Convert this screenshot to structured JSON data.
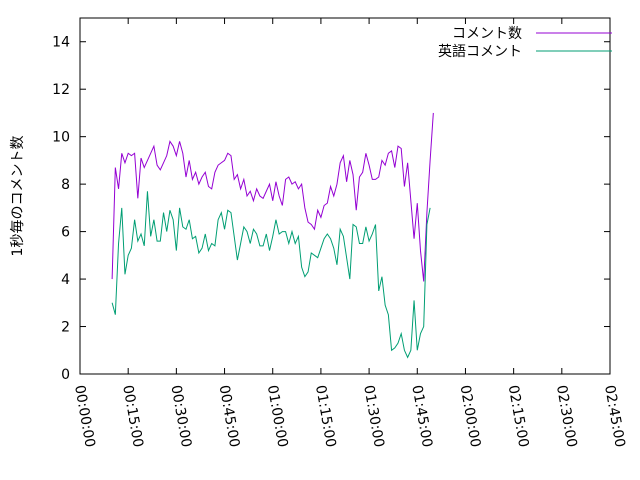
{
  "chart_data": {
    "type": "line",
    "title": "",
    "xlabel": "",
    "ylabel": "1秒毎のコメント数",
    "xlim": [
      0,
      9900
    ],
    "ylim": [
      0,
      15
    ],
    "grid": false,
    "legend_position": "top-right",
    "x_ticks": [
      {
        "v": 0,
        "label": "00:00:00"
      },
      {
        "v": 900,
        "label": "00:15:00"
      },
      {
        "v": 1800,
        "label": "00:30:00"
      },
      {
        "v": 2700,
        "label": "00:45:00"
      },
      {
        "v": 3600,
        "label": "01:00:00"
      },
      {
        "v": 4500,
        "label": "01:15:00"
      },
      {
        "v": 5400,
        "label": "01:30:00"
      },
      {
        "v": 6300,
        "label": "01:45:00"
      },
      {
        "v": 7200,
        "label": "02:00:00"
      },
      {
        "v": 8100,
        "label": "02:15:00"
      },
      {
        "v": 9000,
        "label": "02:30:00"
      },
      {
        "v": 9900,
        "label": "02:45:00"
      }
    ],
    "y_ticks": [
      {
        "v": 0,
        "label": "0"
      },
      {
        "v": 2,
        "label": "2"
      },
      {
        "v": 4,
        "label": "4"
      },
      {
        "v": 6,
        "label": "6"
      },
      {
        "v": 8,
        "label": "8"
      },
      {
        "v": 10,
        "label": "10"
      },
      {
        "v": 12,
        "label": "12"
      },
      {
        "v": 14,
        "label": "14"
      }
    ],
    "series": [
      {
        "name": "コメント数",
        "color": "#9400d3",
        "points": [
          [
            600,
            4.0
          ],
          [
            660,
            8.7
          ],
          [
            720,
            7.8
          ],
          [
            780,
            9.3
          ],
          [
            840,
            8.9
          ],
          [
            900,
            9.3
          ],
          [
            960,
            9.2
          ],
          [
            1020,
            9.3
          ],
          [
            1080,
            7.4
          ],
          [
            1140,
            9.1
          ],
          [
            1200,
            8.7
          ],
          [
            1260,
            9.0
          ],
          [
            1320,
            9.3
          ],
          [
            1380,
            9.6
          ],
          [
            1440,
            8.8
          ],
          [
            1500,
            8.6
          ],
          [
            1560,
            8.9
          ],
          [
            1620,
            9.2
          ],
          [
            1680,
            9.8
          ],
          [
            1740,
            9.6
          ],
          [
            1800,
            9.2
          ],
          [
            1860,
            9.8
          ],
          [
            1920,
            9.3
          ],
          [
            1980,
            8.3
          ],
          [
            2040,
            9.0
          ],
          [
            2100,
            8.2
          ],
          [
            2160,
            8.5
          ],
          [
            2220,
            8.0
          ],
          [
            2280,
            8.3
          ],
          [
            2340,
            8.5
          ],
          [
            2400,
            7.9
          ],
          [
            2460,
            7.8
          ],
          [
            2520,
            8.5
          ],
          [
            2580,
            8.8
          ],
          [
            2640,
            8.9
          ],
          [
            2700,
            9.0
          ],
          [
            2760,
            9.3
          ],
          [
            2820,
            9.2
          ],
          [
            2880,
            8.2
          ],
          [
            2940,
            8.4
          ],
          [
            3000,
            7.8
          ],
          [
            3060,
            8.2
          ],
          [
            3120,
            7.5
          ],
          [
            3180,
            7.7
          ],
          [
            3240,
            7.3
          ],
          [
            3300,
            7.8
          ],
          [
            3360,
            7.5
          ],
          [
            3420,
            7.4
          ],
          [
            3480,
            7.7
          ],
          [
            3540,
            8.0
          ],
          [
            3600,
            7.3
          ],
          [
            3660,
            8.1
          ],
          [
            3720,
            7.5
          ],
          [
            3780,
            7.1
          ],
          [
            3840,
            8.2
          ],
          [
            3900,
            8.3
          ],
          [
            3960,
            8.0
          ],
          [
            4020,
            8.1
          ],
          [
            4080,
            7.8
          ],
          [
            4140,
            8.0
          ],
          [
            4200,
            7.0
          ],
          [
            4260,
            6.4
          ],
          [
            4320,
            6.3
          ],
          [
            4380,
            6.1
          ],
          [
            4440,
            6.9
          ],
          [
            4500,
            6.6
          ],
          [
            4560,
            7.1
          ],
          [
            4620,
            7.2
          ],
          [
            4680,
            7.9
          ],
          [
            4740,
            7.5
          ],
          [
            4800,
            8.0
          ],
          [
            4860,
            8.9
          ],
          [
            4920,
            9.2
          ],
          [
            4980,
            8.1
          ],
          [
            5040,
            9.0
          ],
          [
            5100,
            8.4
          ],
          [
            5160,
            6.9
          ],
          [
            5220,
            8.3
          ],
          [
            5280,
            8.5
          ],
          [
            5340,
            9.3
          ],
          [
            5400,
            8.8
          ],
          [
            5460,
            8.2
          ],
          [
            5520,
            8.2
          ],
          [
            5580,
            8.3
          ],
          [
            5640,
            9.0
          ],
          [
            5700,
            8.8
          ],
          [
            5760,
            9.3
          ],
          [
            5820,
            9.4
          ],
          [
            5880,
            8.7
          ],
          [
            5940,
            9.6
          ],
          [
            6000,
            9.5
          ],
          [
            6060,
            7.9
          ],
          [
            6120,
            8.9
          ],
          [
            6180,
            7.3
          ],
          [
            6240,
            5.7
          ],
          [
            6300,
            7.2
          ],
          [
            6360,
            5.2
          ],
          [
            6420,
            3.9
          ],
          [
            6480,
            6.8
          ],
          [
            6540,
            9.0
          ],
          [
            6600,
            11.0
          ]
        ]
      },
      {
        "name": "英語コメント",
        "color": "#009e73",
        "points": [
          [
            600,
            3.0
          ],
          [
            660,
            2.5
          ],
          [
            720,
            5.5
          ],
          [
            780,
            7.0
          ],
          [
            840,
            4.2
          ],
          [
            900,
            5.0
          ],
          [
            960,
            5.3
          ],
          [
            1020,
            6.5
          ],
          [
            1080,
            5.6
          ],
          [
            1140,
            5.9
          ],
          [
            1200,
            5.4
          ],
          [
            1260,
            7.7
          ],
          [
            1320,
            5.8
          ],
          [
            1380,
            6.5
          ],
          [
            1440,
            5.6
          ],
          [
            1500,
            5.6
          ],
          [
            1560,
            6.8
          ],
          [
            1620,
            6.0
          ],
          [
            1680,
            6.9
          ],
          [
            1740,
            6.5
          ],
          [
            1800,
            5.2
          ],
          [
            1860,
            7.0
          ],
          [
            1920,
            6.2
          ],
          [
            1980,
            6.1
          ],
          [
            2040,
            6.5
          ],
          [
            2100,
            5.7
          ],
          [
            2160,
            5.8
          ],
          [
            2220,
            5.1
          ],
          [
            2280,
            5.3
          ],
          [
            2340,
            5.9
          ],
          [
            2400,
            5.2
          ],
          [
            2460,
            5.5
          ],
          [
            2520,
            5.4
          ],
          [
            2580,
            6.5
          ],
          [
            2640,
            6.8
          ],
          [
            2700,
            6.1
          ],
          [
            2760,
            6.9
          ],
          [
            2820,
            6.8
          ],
          [
            2880,
            5.8
          ],
          [
            2940,
            4.8
          ],
          [
            3000,
            5.5
          ],
          [
            3060,
            6.2
          ],
          [
            3120,
            6.0
          ],
          [
            3180,
            5.5
          ],
          [
            3240,
            6.1
          ],
          [
            3300,
            5.9
          ],
          [
            3360,
            5.4
          ],
          [
            3420,
            5.4
          ],
          [
            3480,
            5.9
          ],
          [
            3540,
            5.2
          ],
          [
            3600,
            5.8
          ],
          [
            3660,
            6.5
          ],
          [
            3720,
            5.9
          ],
          [
            3780,
            6.0
          ],
          [
            3840,
            6.0
          ],
          [
            3900,
            5.5
          ],
          [
            3960,
            6.0
          ],
          [
            4020,
            5.5
          ],
          [
            4080,
            5.8
          ],
          [
            4140,
            4.5
          ],
          [
            4200,
            4.1
          ],
          [
            4260,
            4.3
          ],
          [
            4320,
            5.1
          ],
          [
            4380,
            5.0
          ],
          [
            4440,
            4.9
          ],
          [
            4500,
            5.3
          ],
          [
            4560,
            5.7
          ],
          [
            4620,
            5.9
          ],
          [
            4680,
            5.7
          ],
          [
            4740,
            5.3
          ],
          [
            4800,
            4.6
          ],
          [
            4860,
            6.1
          ],
          [
            4920,
            5.8
          ],
          [
            4980,
            4.9
          ],
          [
            5040,
            4.0
          ],
          [
            5100,
            6.3
          ],
          [
            5160,
            6.2
          ],
          [
            5220,
            5.5
          ],
          [
            5280,
            5.5
          ],
          [
            5340,
            6.2
          ],
          [
            5400,
            5.6
          ],
          [
            5460,
            5.9
          ],
          [
            5520,
            6.3
          ],
          [
            5580,
            3.5
          ],
          [
            5640,
            4.1
          ],
          [
            5700,
            2.9
          ],
          [
            5760,
            2.5
          ],
          [
            5820,
            1.0
          ],
          [
            5880,
            1.1
          ],
          [
            5940,
            1.3
          ],
          [
            6000,
            1.7
          ],
          [
            6060,
            1.0
          ],
          [
            6120,
            0.7
          ],
          [
            6180,
            1.0
          ],
          [
            6240,
            3.1
          ],
          [
            6300,
            1.0
          ],
          [
            6360,
            1.7
          ],
          [
            6420,
            2.0
          ],
          [
            6480,
            6.3
          ],
          [
            6540,
            7.0
          ]
        ]
      }
    ]
  }
}
